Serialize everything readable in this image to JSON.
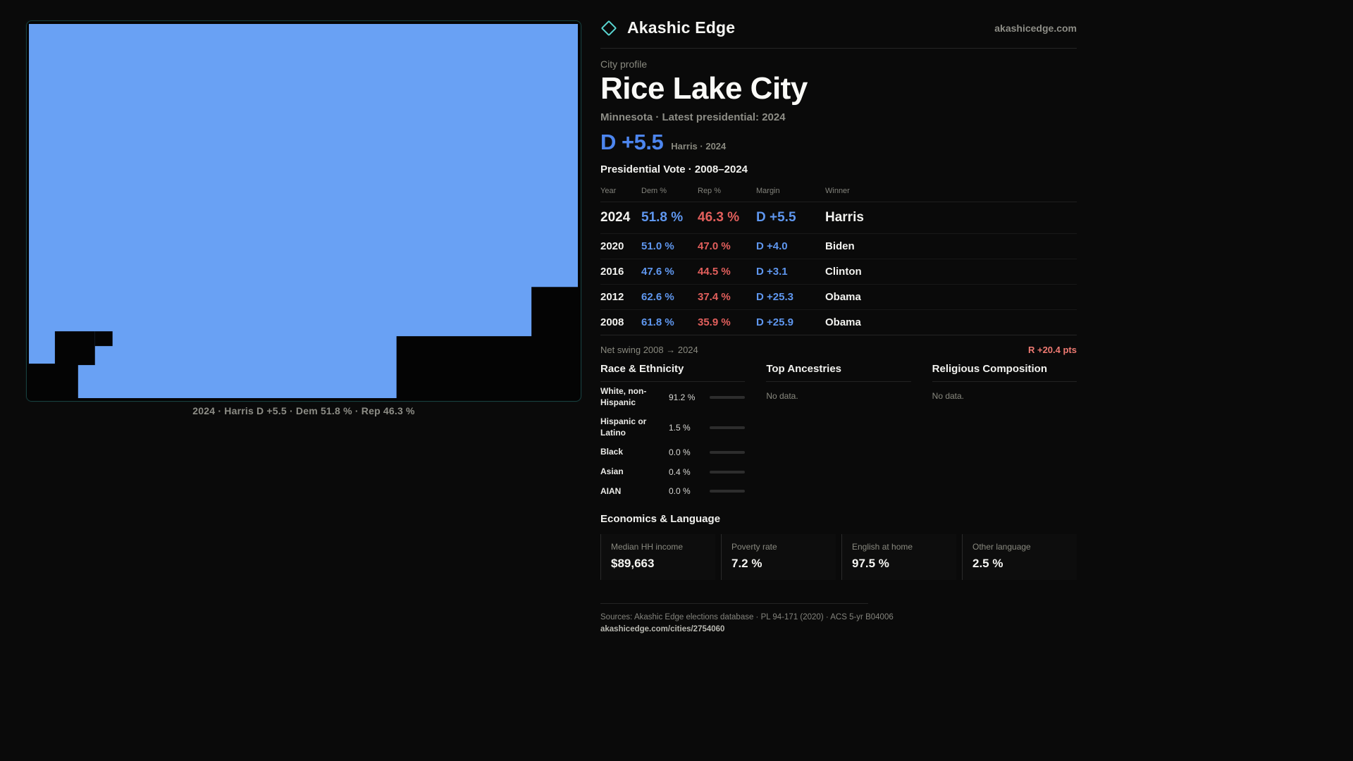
{
  "site": {
    "brand": "Akashic Edge",
    "domain": "akashicedge.com",
    "logo_color": "#59d6d1"
  },
  "map": {
    "caption": "2024 · Harris D +5.5 · Dem 51.8 % · Rep 46.3 %",
    "fill_color": "#69a1f4"
  },
  "profile": {
    "kicker": "City profile",
    "title": "Rice Lake City",
    "subtitle": "Minnesota · Latest presidential: 2024",
    "lead_margin": "D +5.5",
    "lead_note": "Harris · 2024"
  },
  "vote_table": {
    "title": "Presidential Vote · 2008–2024",
    "columns": [
      "Year",
      "Dem %",
      "Rep %",
      "Margin",
      "Winner"
    ],
    "rows": [
      {
        "year": "2024",
        "dem": "51.8 %",
        "rep": "46.3 %",
        "margin": "D +5.5",
        "winner": "Harris"
      },
      {
        "year": "2020",
        "dem": "51.0 %",
        "rep": "47.0 %",
        "margin": "D +4.0",
        "winner": "Biden"
      },
      {
        "year": "2016",
        "dem": "47.6 %",
        "rep": "44.5 %",
        "margin": "D +3.1",
        "winner": "Clinton"
      },
      {
        "year": "2012",
        "dem": "62.6 %",
        "rep": "37.4 %",
        "margin": "D +25.3",
        "winner": "Obama"
      },
      {
        "year": "2008",
        "dem": "61.8 %",
        "rep": "35.9 %",
        "margin": "D +25.9",
        "winner": "Obama"
      }
    ]
  },
  "net_swing": {
    "label": "Net swing 2008 → 2024",
    "value": "R +20.4 pts"
  },
  "race_ethnicity": {
    "title": "Race & Ethnicity",
    "rows": [
      {
        "label": "White, non-Hispanic",
        "value": "91.2 %",
        "pct": 91.2,
        "fill": "#c8cdd7"
      },
      {
        "label": "Hispanic or Latino",
        "value": "1.5 %",
        "pct": 1.5,
        "fill": "#b4652f"
      },
      {
        "label": "Black",
        "value": "0.0 %",
        "pct": 0,
        "fill": "#b4652f"
      },
      {
        "label": "Asian",
        "value": "0.4 %",
        "pct": 0.4,
        "fill": "#b4652f"
      },
      {
        "label": "AIAN",
        "value": "0.0 %",
        "pct": 0,
        "fill": "#b4652f"
      }
    ]
  },
  "ancestries": {
    "title": "Top Ancestries",
    "empty": "No data."
  },
  "religion": {
    "title": "Religious Composition",
    "empty": "No data."
  },
  "economics": {
    "title": "Economics & Language",
    "stats": [
      {
        "label": "Median HH income",
        "value": "$89,663"
      },
      {
        "label": "Poverty rate",
        "value": "7.2 %"
      },
      {
        "label": "English at home",
        "value": "97.5 %"
      },
      {
        "label": "Other language",
        "value": "2.5 %"
      }
    ]
  },
  "footer": {
    "sources": "Sources: Akashic Edge elections database · PL 94-171 (2020) · ACS 5-yr B04006",
    "link": "akashicedge.com/cities/2754060"
  }
}
